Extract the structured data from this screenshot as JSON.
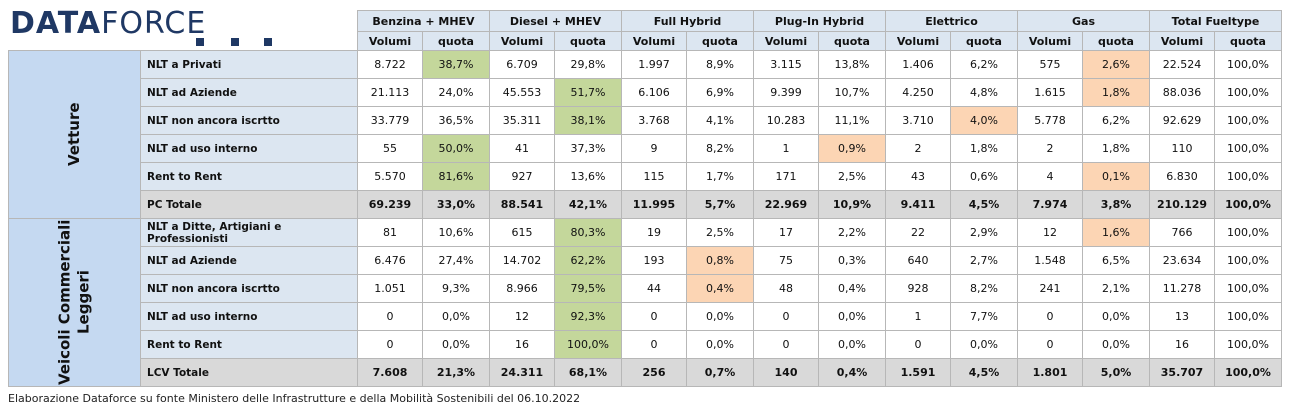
{
  "logo": [
    "DATA",
    "FORCE"
  ],
  "colors": {
    "header": "#dce6f1",
    "label": "#dce6f1",
    "group": "#c5d9f1",
    "total": "#d9d9d9",
    "green": "#c4d79b",
    "orange": "#fcd5b4"
  },
  "table": {
    "groups": [
      "Benzina + MHEV",
      "Diesel + MHEV",
      "Full Hybrid",
      "Plug-In Hybrid",
      "Elettrico",
      "Gas",
      "Total Fueltype"
    ],
    "subheaders": [
      "Volumi",
      "quota"
    ],
    "sections": [
      {
        "name": [
          "Vetture"
        ],
        "rows": [
          {
            "label": "NLT a Privati",
            "cells": [
              "8.722",
              "38,7%",
              "6.709",
              "29,8%",
              "1.997",
              "8,9%",
              "3.115",
              "13,8%",
              "1.406",
              "6,2%",
              "575",
              "2,6%",
              "22.524",
              "100,0%"
            ],
            "green": [
              1
            ],
            "orange": [
              11
            ]
          },
          {
            "label": "NLT ad Aziende",
            "cells": [
              "21.113",
              "24,0%",
              "45.553",
              "51,7%",
              "6.106",
              "6,9%",
              "9.399",
              "10,7%",
              "4.250",
              "4,8%",
              "1.615",
              "1,8%",
              "88.036",
              "100,0%"
            ],
            "green": [
              3
            ],
            "orange": [
              11
            ]
          },
          {
            "label": "NLT non ancora iscrtto",
            "cells": [
              "33.779",
              "36,5%",
              "35.311",
              "38,1%",
              "3.768",
              "4,1%",
              "10.283",
              "11,1%",
              "3.710",
              "4,0%",
              "5.778",
              "6,2%",
              "92.629",
              "100,0%"
            ],
            "green": [
              3
            ],
            "orange": [
              9
            ]
          },
          {
            "label": "NLT ad uso interno",
            "cells": [
              "55",
              "50,0%",
              "41",
              "37,3%",
              "9",
              "8,2%",
              "1",
              "0,9%",
              "2",
              "1,8%",
              "2",
              "1,8%",
              "110",
              "100,0%"
            ],
            "green": [
              1
            ],
            "orange": [
              7
            ]
          },
          {
            "label": "Rent to Rent",
            "cells": [
              "5.570",
              "81,6%",
              "927",
              "13,6%",
              "115",
              "1,7%",
              "171",
              "2,5%",
              "43",
              "0,6%",
              "4",
              "0,1%",
              "6.830",
              "100,0%"
            ],
            "green": [
              1
            ],
            "orange": [
              11
            ]
          },
          {
            "label": "PC Totale",
            "total": true,
            "cells": [
              "69.239",
              "33,0%",
              "88.541",
              "42,1%",
              "11.995",
              "5,7%",
              "22.969",
              "10,9%",
              "9.411",
              "4,5%",
              "7.974",
              "3,8%",
              "210.129",
              "100,0%"
            ]
          }
        ]
      },
      {
        "name": [
          "Veicoli Commerciali",
          "Leggeri"
        ],
        "rows": [
          {
            "label": "NLT a Ditte, Artigiani e Professionisti",
            "cells": [
              "81",
              "10,6%",
              "615",
              "80,3%",
              "19",
              "2,5%",
              "17",
              "2,2%",
              "22",
              "2,9%",
              "12",
              "1,6%",
              "766",
              "100,0%"
            ],
            "green": [
              3
            ],
            "orange": [
              11
            ]
          },
          {
            "label": "NLT ad Aziende",
            "cells": [
              "6.476",
              "27,4%",
              "14.702",
              "62,2%",
              "193",
              "0,8%",
              "75",
              "0,3%",
              "640",
              "2,7%",
              "1.548",
              "6,5%",
              "23.634",
              "100,0%"
            ],
            "green": [
              3
            ],
            "orange": [
              5
            ]
          },
          {
            "label": "NLT non ancora iscrtto",
            "cells": [
              "1.051",
              "9,3%",
              "8.966",
              "79,5%",
              "44",
              "0,4%",
              "48",
              "0,4%",
              "928",
              "8,2%",
              "241",
              "2,1%",
              "11.278",
              "100,0%"
            ],
            "green": [
              3
            ],
            "orange": [
              5
            ]
          },
          {
            "label": "NLT ad uso interno",
            "cells": [
              "0",
              "0,0%",
              "12",
              "92,3%",
              "0",
              "0,0%",
              "0",
              "0,0%",
              "1",
              "7,7%",
              "0",
              "0,0%",
              "13",
              "100,0%"
            ],
            "green": [
              3
            ]
          },
          {
            "label": "Rent to Rent",
            "cells": [
              "0",
              "0,0%",
              "16",
              "100,0%",
              "0",
              "0,0%",
              "0",
              "0,0%",
              "0",
              "0,0%",
              "0",
              "0,0%",
              "16",
              "100,0%"
            ],
            "green": [
              3
            ]
          },
          {
            "label": "LCV Totale",
            "total": true,
            "cells": [
              "7.608",
              "21,3%",
              "24.311",
              "68,1%",
              "256",
              "0,7%",
              "140",
              "0,4%",
              "1.591",
              "4,5%",
              "1.801",
              "5,0%",
              "35.707",
              "100,0%"
            ]
          }
        ]
      }
    ]
  },
  "footer": "Elaborazione Dataforce su fonte Ministero delle Infrastrutture e della Mobilità Sostenibili del 06.10.2022"
}
